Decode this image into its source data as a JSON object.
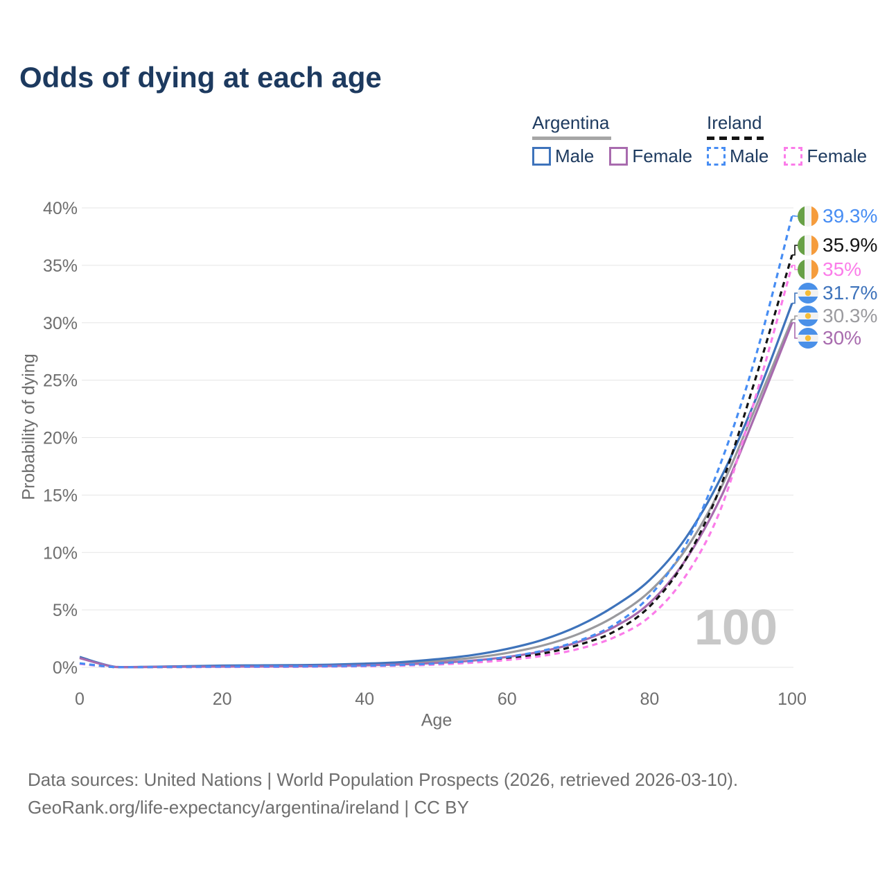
{
  "title": "Odds of dying at each age",
  "legend": {
    "groups": [
      {
        "name": "Argentina",
        "line_style": "solid",
        "underline_color": "#a6a6a6",
        "items": [
          {
            "label": "Male",
            "color": "#3e73bb",
            "dashed": false
          },
          {
            "label": "Female",
            "color": "#a86bae",
            "dashed": false
          }
        ]
      },
      {
        "name": "Ireland",
        "line_style": "dashed",
        "underline_color": "#141414",
        "items": [
          {
            "label": "Male",
            "color": "#478df3",
            "dashed": true
          },
          {
            "label": "Female",
            "color": "#fb7ce9",
            "dashed": true
          }
        ]
      }
    ]
  },
  "chart_data": {
    "type": "line",
    "title": "Odds of dying at each age",
    "xlabel": "Age",
    "ylabel": "Probability of dying",
    "xlim": [
      0,
      100
    ],
    "ylim": [
      0,
      40
    ],
    "x_ticks": [
      0,
      20,
      40,
      60,
      80,
      100
    ],
    "y_ticks": [
      "0%",
      "5%",
      "10%",
      "15%",
      "20%",
      "25%",
      "30%",
      "35%",
      "40%"
    ],
    "grid": "horizontal",
    "legend_position": "top-right",
    "hover_age_watermark": "100",
    "x": [
      0,
      5,
      10,
      15,
      20,
      25,
      30,
      35,
      40,
      45,
      50,
      55,
      60,
      65,
      70,
      75,
      80,
      85,
      90,
      95,
      100
    ],
    "series": [
      {
        "id": "argentina-both",
        "country": "Argentina",
        "sex": "Both",
        "color": "#9a9a9e",
        "dashed": false,
        "flag": "argentina",
        "end_label": "30.3%",
        "values": [
          0.85,
          0.035,
          0.04,
          0.08,
          0.1,
          0.12,
          0.14,
          0.18,
          0.25,
          0.35,
          0.54,
          0.82,
          1.25,
          1.9,
          2.9,
          4.4,
          6.6,
          10.2,
          15.6,
          22.8,
          30.3
        ]
      },
      {
        "id": "argentina-male",
        "country": "Argentina",
        "sex": "Male",
        "color": "#3e73bb",
        "dashed": false,
        "flag": "argentina",
        "end_label": "31.7%",
        "values": [
          0.9,
          0.04,
          0.05,
          0.1,
          0.15,
          0.17,
          0.19,
          0.23,
          0.32,
          0.45,
          0.7,
          1.05,
          1.6,
          2.4,
          3.6,
          5.3,
          7.6,
          11.2,
          16.5,
          23.5,
          31.7
        ]
      },
      {
        "id": "argentina-female",
        "country": "Argentina",
        "sex": "Female",
        "color": "#a86bae",
        "dashed": false,
        "flag": "argentina",
        "end_label": "30%",
        "values": [
          0.8,
          0.03,
          0.03,
          0.05,
          0.06,
          0.07,
          0.09,
          0.12,
          0.17,
          0.25,
          0.38,
          0.58,
          0.9,
          1.4,
          2.2,
          3.5,
          5.6,
          9.3,
          14.8,
          22.2,
          30.0
        ]
      },
      {
        "id": "ireland-both",
        "country": "Ireland",
        "sex": "Both",
        "color": "#141414",
        "dashed": true,
        "flag": "ireland",
        "end_label": "35.9%",
        "values": [
          0.33,
          0.018,
          0.018,
          0.03,
          0.045,
          0.05,
          0.06,
          0.08,
          0.12,
          0.18,
          0.29,
          0.47,
          0.77,
          1.2,
          1.95,
          3.1,
          5.3,
          9.3,
          15.8,
          25.4,
          35.9
        ]
      },
      {
        "id": "ireland-female",
        "country": "Ireland",
        "sex": "Female",
        "color": "#fb7ce9",
        "dashed": true,
        "flag": "ireland",
        "end_label": "35%",
        "values": [
          0.3,
          0.015,
          0.015,
          0.02,
          0.03,
          0.035,
          0.045,
          0.065,
          0.1,
          0.15,
          0.24,
          0.4,
          0.64,
          1.0,
          1.6,
          2.6,
          4.4,
          7.9,
          13.8,
          23.8,
          35.0
        ]
      },
      {
        "id": "ireland-male",
        "country": "Ireland",
        "sex": "Male",
        "color": "#478df3",
        "dashed": true,
        "flag": "ireland",
        "end_label": "39.3%",
        "values": [
          0.35,
          0.02,
          0.02,
          0.04,
          0.06,
          0.07,
          0.08,
          0.1,
          0.14,
          0.21,
          0.33,
          0.55,
          0.9,
          1.45,
          2.3,
          3.7,
          6.2,
          10.6,
          17.8,
          27.3,
          39.3
        ]
      }
    ]
  },
  "flags": {
    "ireland": {
      "left": "#68a046",
      "middle": "#f4f4f4",
      "right": "#f59c3d"
    },
    "argentina": {
      "band": "#4a90e8",
      "middle": "#f2f2f2",
      "sun": "#f5bc38"
    }
  },
  "colors": {
    "title": "#1d3a5f",
    "axis_text": "#6e6e6e",
    "grid": "#e5e5e5",
    "watermark": "#c8c8c8",
    "background": "#ffffff"
  },
  "footer": {
    "line1": "Data sources: United Nations | World Population Prospects (2026, retrieved 2026-03-10).",
    "line2": "GeoRank.org/life-expectancy/argentina/ireland | CC BY"
  }
}
